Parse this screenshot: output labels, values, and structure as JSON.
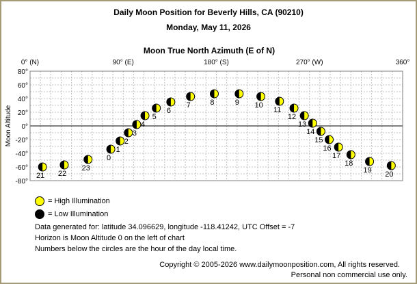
{
  "header": {
    "title": "Daily Moon Position for Beverly Hills, CA (90210)",
    "date": "Monday, May 11, 2026"
  },
  "colors": {
    "high": "#ffff00",
    "low": "#000000",
    "grid": "#c0c0c0",
    "frame": "#a59a76"
  },
  "chart_data": {
    "type": "scatter",
    "title": "Moon True North Azimuth (E of N)",
    "xlabel": "Moon True North Azimuth (E of N)",
    "ylabel": "Moon Altitude",
    "xlim": [
      0,
      360
    ],
    "ylim": [
      -80,
      80
    ],
    "grid": true,
    "x_ticks": [
      {
        "value": 0,
        "label": "0° (N)"
      },
      {
        "value": 90,
        "label": "90° (E)"
      },
      {
        "value": 180,
        "label": "180° (S)"
      },
      {
        "value": 270,
        "label": "270° (W)"
      },
      {
        "value": 360,
        "label": "360°"
      }
    ],
    "y_ticks": [
      {
        "value": 80,
        "label": "80°"
      },
      {
        "value": 60,
        "label": "60°"
      },
      {
        "value": 40,
        "label": "40°"
      },
      {
        "value": 20,
        "label": "20°"
      },
      {
        "value": 0,
        "label": "0°"
      },
      {
        "value": -20,
        "label": "-20°"
      },
      {
        "value": -40,
        "label": "-40°"
      },
      {
        "value": -60,
        "label": "-60°"
      },
      {
        "value": -80,
        "label": "-80°"
      }
    ],
    "points": [
      {
        "hour": "21",
        "azimuth": 12,
        "altitude": -60,
        "illum": "high"
      },
      {
        "hour": "22",
        "azimuth": 33,
        "altitude": -57,
        "illum": "high"
      },
      {
        "hour": "23",
        "azimuth": 56,
        "altitude": -49,
        "illum": "high"
      },
      {
        "hour": "0",
        "azimuth": 78,
        "altitude": -34,
        "illum": "high"
      },
      {
        "hour": "1",
        "azimuth": 87,
        "altitude": -22,
        "illum": "high"
      },
      {
        "hour": "2",
        "azimuth": 95,
        "altitude": -10,
        "illum": "high"
      },
      {
        "hour": "3",
        "azimuth": 103,
        "altitude": 2,
        "illum": "high"
      },
      {
        "hour": "4",
        "azimuth": 111,
        "altitude": 15,
        "illum": "high"
      },
      {
        "hour": "5",
        "azimuth": 122,
        "altitude": 26,
        "illum": "high"
      },
      {
        "hour": "6",
        "azimuth": 136,
        "altitude": 35,
        "illum": "high"
      },
      {
        "hour": "7",
        "azimuth": 155,
        "altitude": 43,
        "illum": "high"
      },
      {
        "hour": "8",
        "azimuth": 178,
        "altitude": 47,
        "illum": "high"
      },
      {
        "hour": "9",
        "azimuth": 202,
        "altitude": 47,
        "illum": "high"
      },
      {
        "hour": "10",
        "azimuth": 223,
        "altitude": 43,
        "illum": "high"
      },
      {
        "hour": "11",
        "azimuth": 241,
        "altitude": 36,
        "illum": "high"
      },
      {
        "hour": "12",
        "azimuth": 255,
        "altitude": 26,
        "illum": "high"
      },
      {
        "hour": "13",
        "azimuth": 265,
        "altitude": 15,
        "illum": "high"
      },
      {
        "hour": "14",
        "azimuth": 273,
        "altitude": 4,
        "illum": "high"
      },
      {
        "hour": "15",
        "azimuth": 281,
        "altitude": -8,
        "illum": "high"
      },
      {
        "hour": "16",
        "azimuth": 289,
        "altitude": -20,
        "illum": "high"
      },
      {
        "hour": "17",
        "azimuth": 298,
        "altitude": -31,
        "illum": "high"
      },
      {
        "hour": "18",
        "azimuth": 310,
        "altitude": -42,
        "illum": "high"
      },
      {
        "hour": "19",
        "azimuth": 328,
        "altitude": -52,
        "illum": "high"
      },
      {
        "hour": "20",
        "azimuth": 349,
        "altitude": -58,
        "illum": "high"
      }
    ]
  },
  "legend": {
    "high": "= High Illumination",
    "low": "= Low Illumination"
  },
  "notes": {
    "line1": "Data generated for: latitude 34.096629, longitude -118.41242, UTC Offset = -7",
    "line2": "Horizon is Moon Altitude 0 on the left of chart",
    "line3": "Numbers below the circles are the hour of the day local time."
  },
  "footer": {
    "copyright": "Copyright © 2005-2026 www.dailymoonposition.com, All rights reserved.",
    "personal": "Personal non commercial use only."
  }
}
